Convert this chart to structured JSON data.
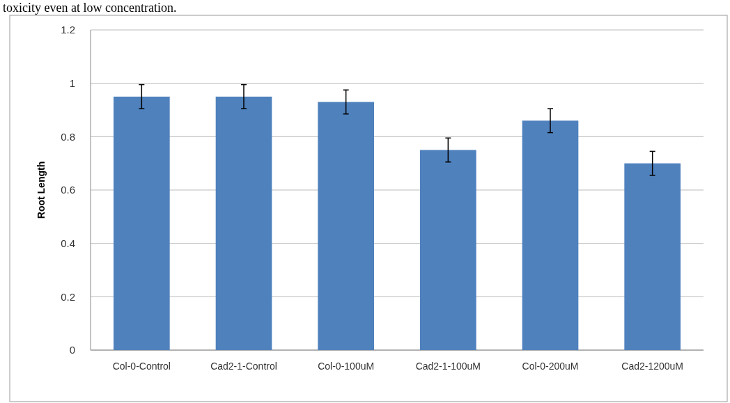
{
  "chart_data": {
    "type": "bar",
    "ylabel": "Root Length",
    "annotations": [
      "toxicity even at low concentration."
    ],
    "categories": [
      "Col-0-Control",
      "Cad2-1-Control",
      "Col-0-100uM",
      "Cad2-1-100uM",
      "Col-0-200uM",
      "Cad2-1200uM"
    ],
    "values": [
      0.95,
      0.95,
      0.93,
      0.75,
      0.86,
      0.7
    ],
    "errors": [
      0.045,
      0.045,
      0.045,
      0.045,
      0.045,
      0.045
    ],
    "color": "#4f81bd",
    "ylim": [
      0,
      1.2
    ],
    "yticks": [
      0,
      0.2,
      0.4,
      0.6,
      0.8,
      1,
      1.2
    ],
    "grid": "y"
  }
}
